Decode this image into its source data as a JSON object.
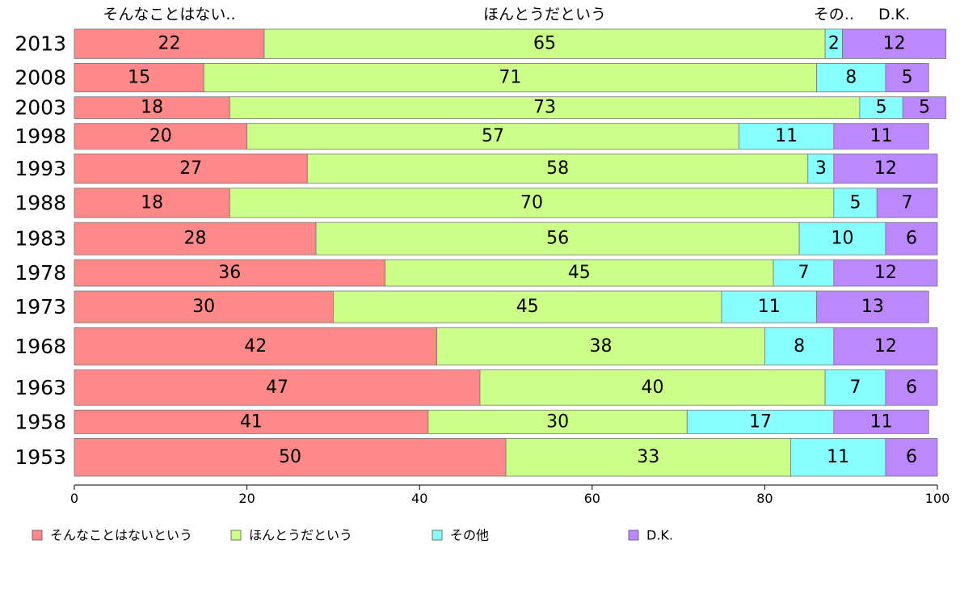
{
  "chart_data": {
    "type": "bar",
    "orientation": "horizontal",
    "stacked": true,
    "categories": [
      "2013",
      "2008",
      "2003",
      "1998",
      "1993",
      "1988",
      "1983",
      "1978",
      "1973",
      "1968",
      "1963",
      "1958",
      "1953"
    ],
    "series": [
      {
        "name": "そんなことはないという",
        "short_label": "そんなことはない..",
        "color": "#ff8888",
        "values": [
          22,
          15,
          18,
          20,
          27,
          18,
          28,
          36,
          30,
          42,
          47,
          41,
          50
        ]
      },
      {
        "name": "ほんとうだという",
        "short_label": "ほんとうだという",
        "color": "#ccff88",
        "values": [
          65,
          71,
          73,
          57,
          58,
          70,
          56,
          45,
          45,
          38,
          40,
          30,
          33
        ]
      },
      {
        "name": "その他",
        "short_label": "その..",
        "color": "#88ffff",
        "values": [
          2,
          8,
          5,
          11,
          3,
          5,
          10,
          7,
          11,
          8,
          7,
          17,
          11
        ]
      },
      {
        "name": "D.K.",
        "short_label": "D.K.",
        "color": "#bb88ff",
        "values": [
          12,
          5,
          5,
          11,
          12,
          7,
          6,
          12,
          13,
          12,
          6,
          11,
          6
        ]
      }
    ],
    "sample_relative_size": [
      1.0,
      0.97,
      0.74,
      0.87,
      1.0,
      1.0,
      1.1,
      0.9,
      1.08,
      1.27,
      1.2,
      0.8,
      1.28
    ],
    "xlim": [
      0,
      100
    ],
    "xticks": [
      0,
      20,
      40,
      60,
      80,
      100
    ],
    "grid": false,
    "legend_position": "bottom"
  }
}
